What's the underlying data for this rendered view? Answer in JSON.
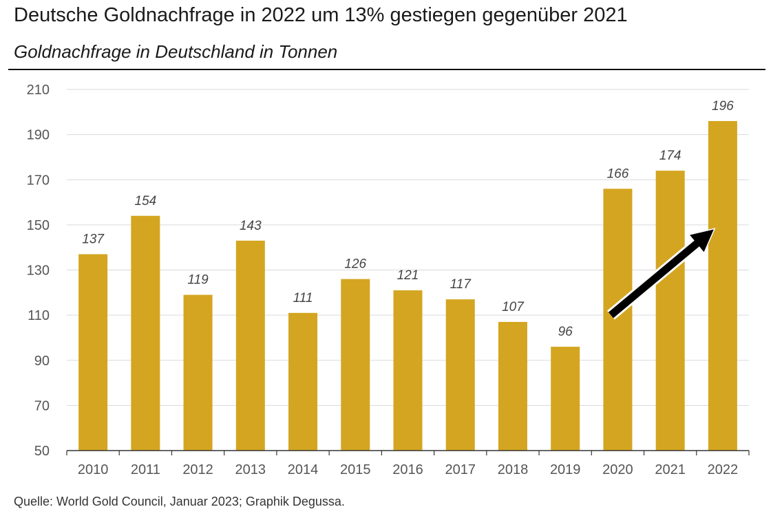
{
  "header": {
    "title": "Deutsche Goldnachfrage in 2022 um 13% gestiegen gegenüber 2021",
    "subtitle": "Goldnachfrage in Deutschland in Tonnen"
  },
  "footer": {
    "source": "Quelle: World Gold Council, Januar 2023; Graphik Degussa."
  },
  "colors": {
    "bar": "#D4A520",
    "grid": "#d9d9d9",
    "axis": "#333333",
    "arrow": "#000000"
  },
  "chart_data": {
    "type": "bar",
    "title": "Deutsche Goldnachfrage in 2022 um 13% gestiegen gegenüber 2021",
    "subtitle": "Goldnachfrage in Deutschland in Tonnen",
    "xlabel": "",
    "ylabel": "",
    "categories": [
      "2010",
      "2011",
      "2012",
      "2013",
      "2014",
      "2015",
      "2016",
      "2017",
      "2018",
      "2019",
      "2020",
      "2021",
      "2022"
    ],
    "values": [
      137,
      154,
      119,
      143,
      111,
      126,
      121,
      117,
      107,
      96,
      166,
      174,
      196
    ],
    "data_labels": [
      "137",
      "154",
      "119",
      "143",
      "111",
      "126",
      "121",
      "117",
      "107",
      "96",
      "166",
      "174",
      "196"
    ],
    "ylim": [
      50,
      210
    ],
    "yticks": [
      50,
      70,
      90,
      110,
      130,
      150,
      170,
      190,
      210
    ],
    "grid": true,
    "legend": "none",
    "annotation": {
      "type": "arrow",
      "description": "upward trend arrow",
      "from": {
        "category": "2020",
        "value": 110
      },
      "to": {
        "category": "2022",
        "value": 148
      }
    }
  }
}
